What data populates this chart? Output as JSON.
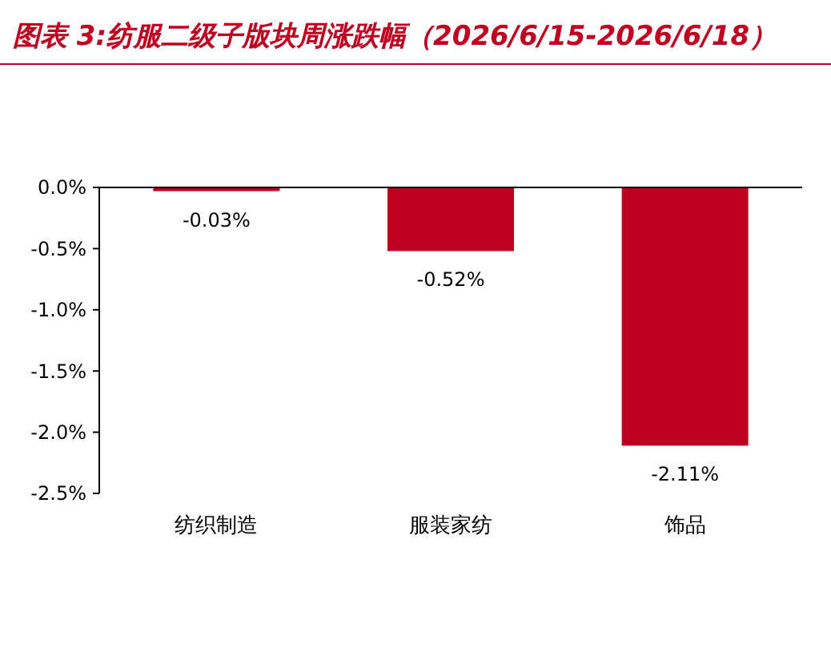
{
  "chart_data": {
    "type": "bar",
    "title": "图表 3:纺服二级子版块周涨跌幅（2026/6/15-2026/6/18）",
    "categories": [
      "纺织制造",
      "服装家纺",
      "饰品"
    ],
    "values": [
      -0.03,
      -0.52,
      -2.11
    ],
    "value_labels": [
      "-0.03%",
      "-0.52%",
      "-2.11%"
    ],
    "color": "#c00020",
    "ylim": [
      -2.5,
      0
    ],
    "yticks": [
      {
        "value": 0,
        "label": "0.0%"
      },
      {
        "value": -0.5,
        "label": "-0.5%"
      },
      {
        "value": -1,
        "label": "-1.0%"
      },
      {
        "value": -1.5,
        "label": "-1.5%"
      },
      {
        "value": -2,
        "label": "-2.0%"
      },
      {
        "value": -2.5,
        "label": "-2.5%"
      }
    ],
    "grid": false
  }
}
